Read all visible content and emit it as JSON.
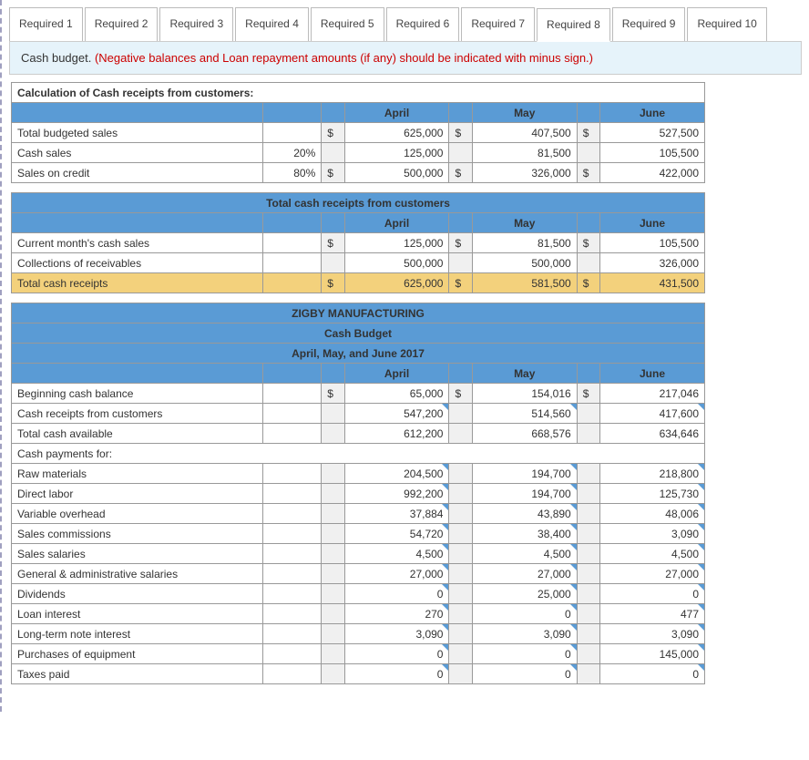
{
  "tabs": {
    "items": [
      "Required 1",
      "Required 2",
      "Required 3",
      "Required 4",
      "Required 5",
      "Required 6",
      "Required 7",
      "Required 8",
      "Required 9",
      "Required 10"
    ],
    "active_index": 7
  },
  "instruction": {
    "title": "Cash budget.",
    "note": "(Negative balances and Loan repayment amounts (if any) should be indicated with minus sign.)"
  },
  "section1": {
    "title": "Calculation of Cash receipts from customers:",
    "cols": [
      "April",
      "May",
      "June"
    ],
    "rows": [
      {
        "label": "Total budgeted sales",
        "pct": "",
        "apr": "625,000",
        "may": "407,500",
        "jun": "527,500",
        "cur": true
      },
      {
        "label": "Cash sales",
        "pct": "20%",
        "apr": "125,000",
        "may": "81,500",
        "jun": "105,500",
        "cur": false
      },
      {
        "label": "Sales on credit",
        "pct": "80%",
        "apr": "500,000",
        "may": "326,000",
        "jun": "422,000",
        "cur": true
      }
    ]
  },
  "section2": {
    "title": "Total cash receipts from customers",
    "cols": [
      "April",
      "May",
      "June"
    ],
    "rows": [
      {
        "label": "Current month's cash sales",
        "apr": "125,000",
        "may": "81,500",
        "jun": "105,500",
        "cur": true
      },
      {
        "label": "Collections of receivables",
        "apr": "500,000",
        "may": "500,000",
        "jun": "326,000",
        "cur": false
      }
    ],
    "total": {
      "label": "Total cash receipts",
      "apr": "625,000",
      "may": "581,500",
      "jun": "431,500"
    }
  },
  "section3": {
    "company": "ZIGBY MANUFACTURING",
    "subtitle": "Cash Budget",
    "period": "April, May, and June 2017",
    "cols": [
      "April",
      "May",
      "June"
    ],
    "rows1": [
      {
        "label": "Beginning cash balance",
        "apr": "65,000",
        "may": "154,016",
        "jun": "217,046",
        "cur": true
      },
      {
        "label": "Cash receipts from customers",
        "apr": "547,200",
        "may": "514,560",
        "jun": "417,600",
        "cur": false,
        "corner": true
      },
      {
        "label": "Total cash available",
        "apr": "612,200",
        "may": "668,576",
        "jun": "634,646",
        "cur": false
      }
    ],
    "pay_header": "Cash payments for:",
    "payments": [
      {
        "label": "Raw materials",
        "apr": "204,500",
        "may": "194,700",
        "jun": "218,800"
      },
      {
        "label": "Direct labor",
        "apr": "992,200",
        "may": "194,700",
        "jun": "125,730"
      },
      {
        "label": "Variable overhead",
        "apr": "37,884",
        "may": "43,890",
        "jun": "48,006"
      },
      {
        "label": "Sales commissions",
        "apr": "54,720",
        "may": "38,400",
        "jun": "3,090"
      },
      {
        "label": "Sales salaries",
        "apr": "4,500",
        "may": "4,500",
        "jun": "4,500"
      },
      {
        "label": "General & administrative salaries",
        "apr": "27,000",
        "may": "27,000",
        "jun": "27,000"
      },
      {
        "label": "Dividends",
        "apr": "0",
        "may": "25,000",
        "jun": "0"
      },
      {
        "label": "Loan interest",
        "apr": "270",
        "may": "0",
        "jun": "477"
      },
      {
        "label": "Long-term note interest",
        "apr": "3,090",
        "may": "3,090",
        "jun": "3,090"
      },
      {
        "label": "Purchases of equipment",
        "apr": "0",
        "may": "0",
        "jun": "145,000"
      },
      {
        "label": "Taxes paid",
        "apr": "0",
        "may": "0",
        "jun": "0"
      }
    ]
  },
  "colors": {
    "header_blue": "#5a9bd5",
    "total_gold": "#f3d17c",
    "instruction_bg": "#e6f3fa",
    "red_text": "#c00"
  }
}
